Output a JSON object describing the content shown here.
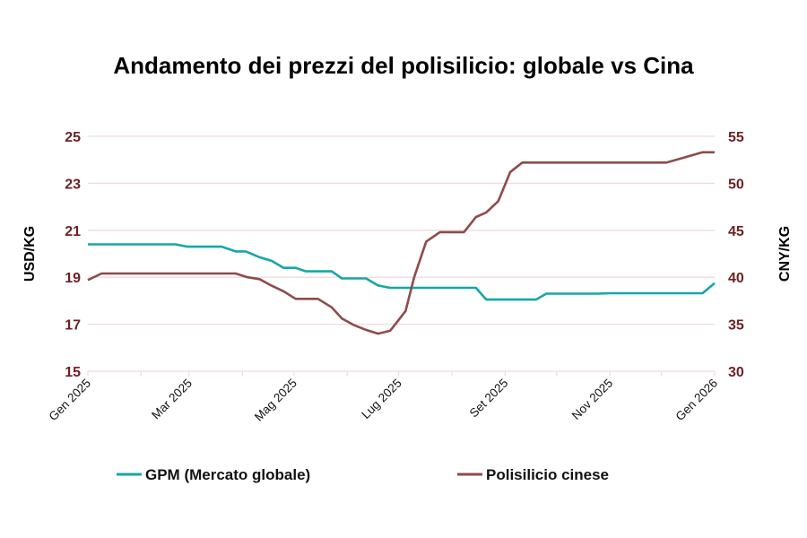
{
  "chart_data": {
    "type": "line",
    "title": "Andamento dei prezzi del polisilicio: globale vs Cina",
    "xlabel": "",
    "ylabel_left": "USD/KG",
    "ylabel_right": "CNY/KG",
    "xlim": [
      "2025-01-01",
      "2026-01-01"
    ],
    "ylim_left": [
      15,
      25
    ],
    "ylim_right": [
      30,
      55
    ],
    "yticks_left": [
      "15",
      "17",
      "19",
      "21",
      "23",
      "25"
    ],
    "yticks_right": [
      "30",
      "35",
      "40",
      "45",
      "50",
      "55"
    ],
    "xticks": [
      {
        "date": "2025-01-01",
        "label": "Gen 2025"
      },
      {
        "date": "2025-03-01",
        "label": "Mar 2025"
      },
      {
        "date": "2025-05-01",
        "label": "Mag 2025"
      },
      {
        "date": "2025-07-01",
        "label": "Lug 2025"
      },
      {
        "date": "2025-09-01",
        "label": "Set 2025"
      },
      {
        "date": "2025-11-01",
        "label": "Nov 2025"
      },
      {
        "date": "2026-01-01",
        "label": "Gen 2026"
      }
    ],
    "grid": true,
    "legend_position": "bottom",
    "colors": {
      "tick_text": "#6e1f24",
      "grid": "#f0dcdc"
    },
    "series": [
      {
        "name": "GPM (Mercato globale)",
        "axis": "left",
        "color": "#17a6a6",
        "points": [
          [
            "2025-01-01",
            20.4
          ],
          [
            "2025-02-21",
            20.4
          ],
          [
            "2025-02-28",
            20.3
          ],
          [
            "2025-03-20",
            20.3
          ],
          [
            "2025-03-28",
            20.1
          ],
          [
            "2025-04-03",
            20.1
          ],
          [
            "2025-04-11",
            19.85
          ],
          [
            "2025-04-18",
            19.7
          ],
          [
            "2025-04-25",
            19.4
          ],
          [
            "2025-05-02",
            19.4
          ],
          [
            "2025-05-08",
            19.25
          ],
          [
            "2025-05-23",
            19.25
          ],
          [
            "2025-05-29",
            18.95
          ],
          [
            "2025-06-12",
            18.95
          ],
          [
            "2025-06-19",
            18.65
          ],
          [
            "2025-06-26",
            18.55
          ],
          [
            "2025-08-15",
            18.55
          ],
          [
            "2025-08-21",
            18.05
          ],
          [
            "2025-09-19",
            18.05
          ],
          [
            "2025-09-25",
            18.3
          ],
          [
            "2025-10-25",
            18.3
          ],
          [
            "2025-11-01",
            18.32
          ],
          [
            "2025-12-25",
            18.32
          ],
          [
            "2026-01-01",
            18.75
          ]
        ]
      },
      {
        "name": "Polisilicio cinese",
        "axis": "right",
        "color": "#8e4b4b",
        "points": [
          [
            "2025-01-01",
            39.7
          ],
          [
            "2025-01-09",
            40.4
          ],
          [
            "2025-03-28",
            40.4
          ],
          [
            "2025-04-04",
            40.0
          ],
          [
            "2025-04-11",
            39.8
          ],
          [
            "2025-04-18",
            39.1
          ],
          [
            "2025-04-25",
            38.5
          ],
          [
            "2025-05-02",
            37.7
          ],
          [
            "2025-05-15",
            37.7
          ],
          [
            "2025-05-23",
            36.8
          ],
          [
            "2025-05-29",
            35.6
          ],
          [
            "2025-06-05",
            34.9
          ],
          [
            "2025-06-12",
            34.4
          ],
          [
            "2025-06-19",
            34.0
          ],
          [
            "2025-06-26",
            34.3
          ],
          [
            "2025-07-05",
            36.4
          ],
          [
            "2025-07-10",
            40.0
          ],
          [
            "2025-07-17",
            43.8
          ],
          [
            "2025-07-25",
            44.8
          ],
          [
            "2025-08-08",
            44.8
          ],
          [
            "2025-08-15",
            46.4
          ],
          [
            "2025-08-21",
            46.9
          ],
          [
            "2025-08-28",
            48.1
          ],
          [
            "2025-09-04",
            51.2
          ],
          [
            "2025-09-11",
            52.2
          ],
          [
            "2025-12-04",
            52.2
          ],
          [
            "2025-12-25",
            53.3
          ],
          [
            "2026-01-01",
            53.3
          ]
        ]
      }
    ]
  }
}
